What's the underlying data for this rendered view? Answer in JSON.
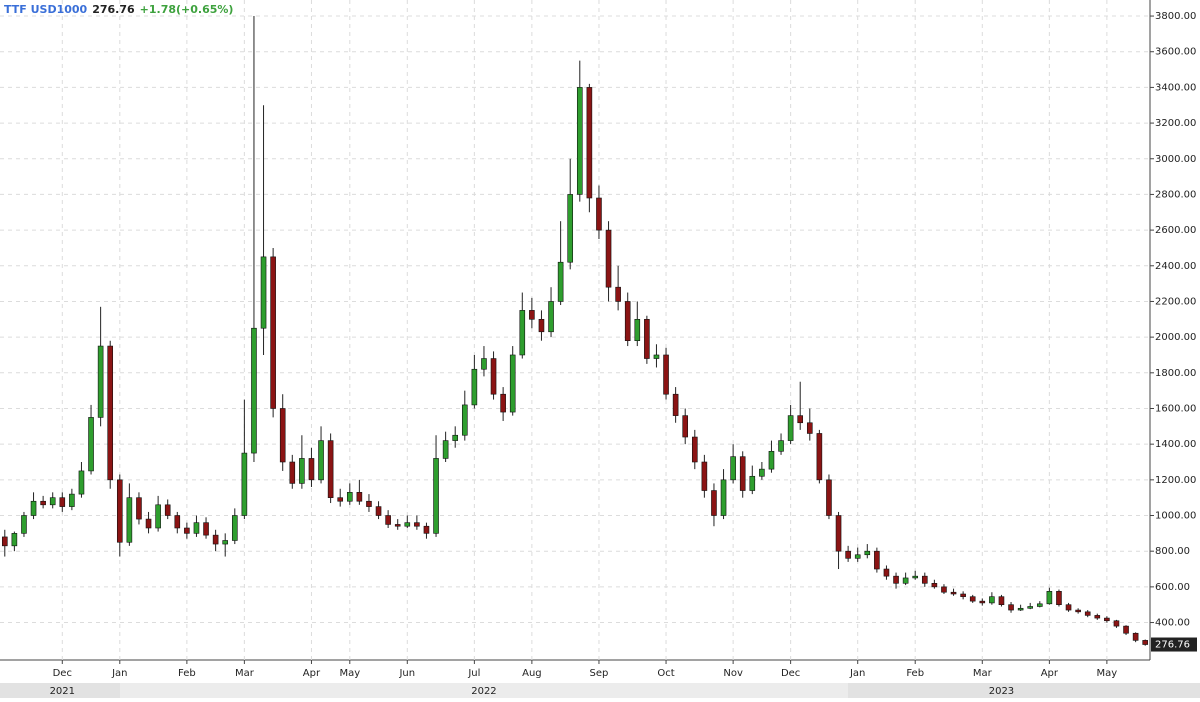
{
  "chart_data": {
    "type": "candlestick",
    "title": "TTF USD1000",
    "change": "+1.78(+0.65%)",
    "up_color": "#2e9e2e",
    "down_color": "#8b1414",
    "grid": true,
    "ylim": [
      190,
      3890
    ],
    "yticks": [
      {
        "value": 400,
        "label": "400.00"
      },
      {
        "value": 600,
        "label": "600.00"
      },
      {
        "value": 800,
        "label": "800.00"
      },
      {
        "value": 1000,
        "label": "1000.00"
      },
      {
        "value": 1200,
        "label": "1200.00"
      },
      {
        "value": 1400,
        "label": "1400.00"
      },
      {
        "value": 1600,
        "label": "1600.00"
      },
      {
        "value": 1800,
        "label": "1800.00"
      },
      {
        "value": 2000,
        "label": "2000.00"
      },
      {
        "value": 2200,
        "label": "2200.00"
      },
      {
        "value": 2400,
        "label": "2400.00"
      },
      {
        "value": 2600,
        "label": "2600.00"
      },
      {
        "value": 2800,
        "label": "2800.00"
      },
      {
        "value": 3000,
        "label": "3000.00"
      },
      {
        "value": 3200,
        "label": "3200.00"
      },
      {
        "value": 3400,
        "label": "3400.00"
      },
      {
        "value": 3600,
        "label": "3600.00"
      },
      {
        "value": 3800,
        "label": "3800.00"
      }
    ],
    "categories": [
      null,
      null,
      null,
      null,
      null,
      null,
      "Dec",
      null,
      null,
      null,
      null,
      null,
      "Jan",
      null,
      null,
      null,
      null,
      null,
      null,
      "Feb",
      null,
      null,
      null,
      null,
      null,
      "Mar",
      null,
      null,
      null,
      null,
      null,
      null,
      "Apr",
      null,
      null,
      null,
      "May",
      null,
      null,
      null,
      null,
      null,
      "Jun",
      null,
      null,
      null,
      null,
      null,
      null,
      "Jul",
      null,
      null,
      null,
      null,
      null,
      "Aug",
      null,
      null,
      null,
      null,
      null,
      null,
      "Sep",
      null,
      null,
      null,
      null,
      null,
      null,
      "Oct",
      null,
      null,
      null,
      null,
      null,
      null,
      "Nov",
      null,
      null,
      null,
      null,
      null,
      "Dec",
      null,
      null,
      null,
      null,
      null,
      null,
      "Jan",
      null,
      null,
      null,
      null,
      null,
      "Feb",
      null,
      null,
      null,
      null,
      null,
      null,
      "Mar",
      null,
      null,
      null,
      null,
      null,
      null,
      "Apr",
      null,
      null,
      null,
      null,
      null,
      "May",
      null,
      null,
      null,
      null
    ],
    "years": [
      null,
      null,
      null,
      null,
      null,
      null,
      "2021",
      null,
      null,
      null,
      null,
      null,
      null,
      null,
      null,
      null,
      null,
      null,
      null,
      null,
      null,
      null,
      null,
      null,
      null,
      null,
      null,
      null,
      null,
      null,
      null,
      null,
      null,
      null,
      null,
      null,
      null,
      null,
      null,
      null,
      null,
      null,
      null,
      null,
      null,
      null,
      null,
      null,
      null,
      null,
      "2022",
      null,
      null,
      null,
      null,
      null,
      null,
      null,
      null,
      null,
      null,
      null,
      null,
      null,
      null,
      null,
      null,
      null,
      null,
      null,
      null,
      null,
      null,
      null,
      null,
      null,
      null,
      null,
      null,
      null,
      null,
      null,
      null,
      null,
      null,
      null,
      null,
      null,
      null,
      null,
      null,
      null,
      null,
      null,
      null,
      null,
      null,
      null,
      null,
      null,
      null,
      null,
      null,
      null,
      "2023",
      null,
      null,
      null,
      null,
      null,
      null,
      null,
      null,
      null,
      null,
      null,
      null,
      null,
      null,
      null
    ],
    "open": [
      880,
      830,
      900,
      1000,
      1080,
      1060,
      1100,
      1050,
      1120,
      1250,
      1550,
      1950,
      1200,
      850,
      1100,
      980,
      930,
      1060,
      1000,
      930,
      900,
      960,
      890,
      840,
      860,
      1000,
      1350,
      2050,
      2450,
      1600,
      1300,
      1180,
      1320,
      1200,
      1420,
      1100,
      1080,
      1130,
      1080,
      1050,
      1000,
      950,
      940,
      960,
      940,
      900,
      1320,
      1420,
      1450,
      1620,
      1820,
      1880,
      1680,
      1580,
      1900,
      2150,
      2100,
      2030,
      2200,
      2420,
      2800,
      3400,
      2780,
      2600,
      2280,
      2200,
      1980,
      2100,
      1880,
      1900,
      1680,
      1560,
      1440,
      1300,
      1140,
      1000,
      1200,
      1330,
      1140,
      1220,
      1260,
      1360,
      1420,
      1560,
      1520,
      1460,
      1200,
      1000,
      800,
      760,
      780,
      800,
      700,
      660,
      620,
      650,
      660,
      620,
      600,
      570,
      560,
      545,
      520,
      510,
      545,
      500,
      470,
      480,
      490,
      505,
      575,
      500,
      470,
      460,
      440,
      425,
      410,
      380,
      340,
      300
    ],
    "high": [
      920,
      910,
      1020,
      1130,
      1110,
      1130,
      1130,
      1150,
      1300,
      1620,
      2170,
      1980,
      1230,
      1180,
      1130,
      1020,
      1110,
      1090,
      1020,
      960,
      1000,
      990,
      920,
      900,
      1040,
      1650,
      3800,
      3300,
      2500,
      1680,
      1340,
      1450,
      1380,
      1500,
      1460,
      1150,
      1180,
      1200,
      1120,
      1080,
      1030,
      980,
      1000,
      1000,
      960,
      1450,
      1470,
      1500,
      1700,
      1900,
      1950,
      1920,
      1720,
      1950,
      2250,
      2220,
      2150,
      2280,
      2650,
      3000,
      3550,
      3420,
      2850,
      2650,
      2400,
      2250,
      2200,
      2120,
      1960,
      1940,
      1720,
      1600,
      1480,
      1340,
      1180,
      1260,
      1400,
      1360,
      1280,
      1300,
      1420,
      1460,
      1620,
      1750,
      1600,
      1480,
      1230,
      1020,
      830,
      820,
      840,
      820,
      720,
      680,
      680,
      690,
      680,
      640,
      615,
      590,
      575,
      555,
      535,
      570,
      555,
      515,
      500,
      510,
      520,
      595,
      585,
      510,
      480,
      470,
      450,
      435,
      415,
      385,
      345,
      305
    ],
    "low": [
      770,
      800,
      880,
      980,
      1040,
      1040,
      1020,
      1030,
      1100,
      1230,
      1500,
      1150,
      770,
      830,
      950,
      900,
      910,
      980,
      900,
      870,
      880,
      870,
      800,
      770,
      840,
      980,
      1300,
      1900,
      1550,
      1250,
      1150,
      1150,
      1160,
      1180,
      1070,
      1050,
      1060,
      1060,
      1020,
      980,
      930,
      920,
      930,
      920,
      870,
      880,
      1300,
      1380,
      1420,
      1600,
      1780,
      1650,
      1530,
      1560,
      1880,
      2050,
      1980,
      2000,
      2180,
      2380,
      2760,
      2700,
      2550,
      2200,
      2150,
      1950,
      1950,
      1850,
      1830,
      1650,
      1520,
      1400,
      1260,
      1100,
      940,
      980,
      1180,
      1100,
      1120,
      1200,
      1240,
      1340,
      1400,
      1480,
      1420,
      1180,
      980,
      700,
      740,
      740,
      760,
      680,
      640,
      590,
      610,
      640,
      600,
      590,
      560,
      550,
      530,
      510,
      495,
      500,
      490,
      455,
      465,
      475,
      485,
      500,
      490,
      460,
      450,
      430,
      415,
      400,
      370,
      330,
      290,
      270
    ],
    "close": [
      830,
      900,
      1000,
      1080,
      1060,
      1100,
      1050,
      1120,
      1250,
      1550,
      1950,
      1200,
      850,
      1100,
      980,
      930,
      1060,
      1000,
      930,
      900,
      960,
      890,
      840,
      860,
      1000,
      1350,
      2050,
      2450,
      1600,
      1300,
      1180,
      1320,
      1200,
      1420,
      1100,
      1080,
      1130,
      1080,
      1050,
      1000,
      950,
      940,
      960,
      940,
      900,
      1320,
      1420,
      1450,
      1620,
      1820,
      1880,
      1680,
      1580,
      1900,
      2150,
      2100,
      2030,
      2200,
      2420,
      2800,
      3400,
      2780,
      2600,
      2280,
      2200,
      1980,
      2100,
      1880,
      1900,
      1680,
      1560,
      1440,
      1300,
      1140,
      1000,
      1200,
      1330,
      1140,
      1220,
      1260,
      1360,
      1420,
      1560,
      1520,
      1460,
      1200,
      1000,
      800,
      760,
      780,
      800,
      700,
      660,
      620,
      650,
      660,
      620,
      600,
      570,
      560,
      545,
      520,
      510,
      545,
      500,
      470,
      480,
      490,
      505,
      575,
      500,
      470,
      460,
      440,
      425,
      410,
      380,
      340,
      300,
      276.76
    ]
  }
}
